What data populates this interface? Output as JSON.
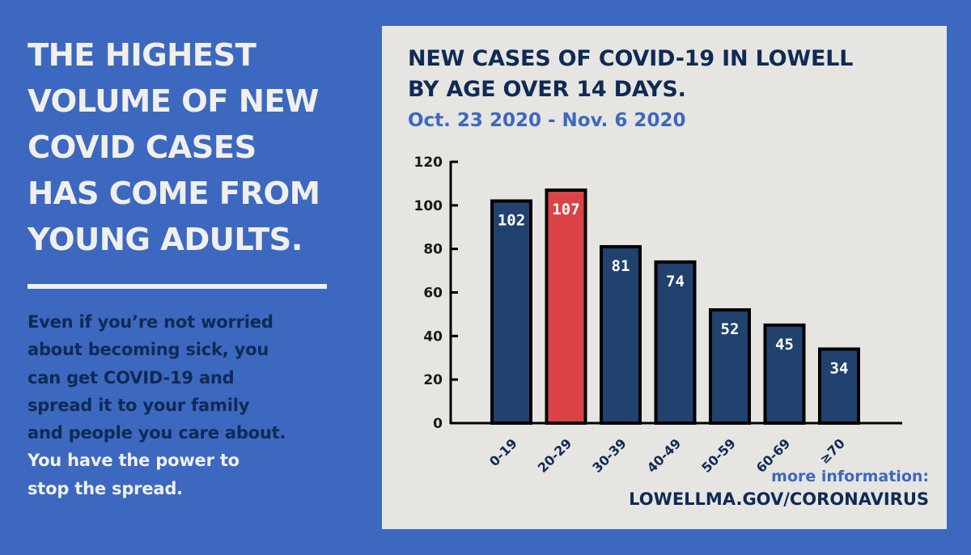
{
  "headline_lines": [
    "THE HIGHEST",
    "VOLUME OF NEW",
    "COVID CASES",
    "HAS COME FROM",
    "YOUNG ADULTS."
  ],
  "body_lines": [
    "Even if you’re not worried",
    "about becoming sick, you",
    "can get COVID-19 and",
    "spread it to your family",
    "and people you care about."
  ],
  "body_lines_white": [
    "You have the power to",
    "stop the spread."
  ],
  "colors": {
    "background": "#3c68bf",
    "panel": "#e6e5e1",
    "bar": "#21416f",
    "bar_highlight": "#db4446",
    "navy_text": "#0f2a55"
  },
  "footer": {
    "more": "more information:",
    "url": "LOWELLMA.GOV/CORONAVIRUS"
  },
  "chart_data": {
    "type": "bar",
    "title_lines": [
      "NEW CASES OF COVID-19 IN LOWELL",
      "BY AGE OVER 14 DAYS."
    ],
    "subtitle": "Oct. 23 2020 - Nov. 6 2020",
    "categories": [
      "0-19",
      "20-29",
      "30-39",
      "40-49",
      "50-59",
      "60-69",
      "≥70"
    ],
    "values": [
      102,
      107,
      81,
      74,
      52,
      45,
      34
    ],
    "highlight_index": 1,
    "ylim": [
      0,
      120
    ],
    "yticks": [
      0,
      20,
      40,
      60,
      80,
      100,
      120
    ],
    "xlabel": "",
    "ylabel": "",
    "grid": false,
    "data_labels": true
  }
}
